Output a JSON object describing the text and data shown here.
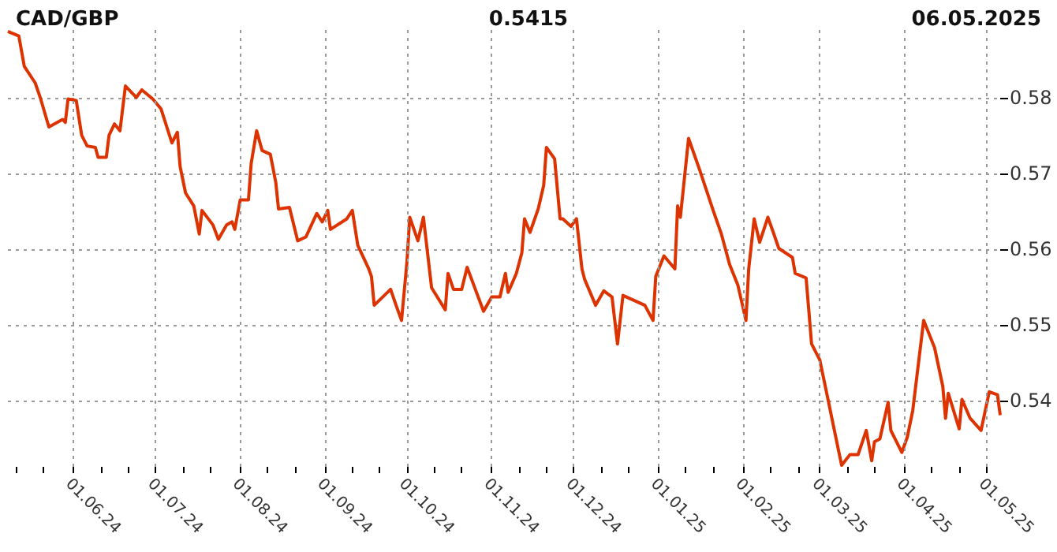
{
  "chart_data": {
    "type": "line",
    "title": "CAD/GBP",
    "annotations": [
      "0.5415",
      "06.05.2025"
    ],
    "x": [
      "2024-05-08",
      "2024-05-12",
      "2024-05-14",
      "2024-05-18",
      "2024-05-20",
      "2024-05-23",
      "2024-05-28",
      "2024-05-29",
      "2024-05-30",
      "2024-06-02",
      "2024-06-04",
      "2024-06-06",
      "2024-06-09",
      "2024-06-10",
      "2024-06-13",
      "2024-06-14",
      "2024-06-16",
      "2024-06-18",
      "2024-06-20",
      "2024-06-24",
      "2024-06-26",
      "2024-06-30",
      "2024-07-03",
      "2024-07-07",
      "2024-07-09",
      "2024-07-10",
      "2024-07-12",
      "2024-07-15",
      "2024-07-17",
      "2024-07-18",
      "2024-07-22",
      "2024-07-24",
      "2024-07-27",
      "2024-07-29",
      "2024-07-30",
      "2024-08-01",
      "2024-08-04",
      "2024-08-05",
      "2024-08-07",
      "2024-08-09",
      "2024-08-12",
      "2024-08-14",
      "2024-08-15",
      "2024-08-19",
      "2024-08-22",
      "2024-08-25",
      "2024-08-29",
      "2024-08-31",
      "2024-09-02",
      "2024-09-03",
      "2024-09-09",
      "2024-09-11",
      "2024-09-13",
      "2024-09-17",
      "2024-09-18",
      "2024-09-19",
      "2024-09-25",
      "2024-09-27",
      "2024-09-29",
      "2024-10-01",
      "2024-10-02",
      "2024-10-05",
      "2024-10-07",
      "2024-10-09",
      "2024-10-10",
      "2024-10-15",
      "2024-10-16",
      "2024-10-18",
      "2024-10-21",
      "2024-10-23",
      "2024-10-26",
      "2024-10-29",
      "2024-11-01",
      "2024-11-04",
      "2024-11-06",
      "2024-11-07",
      "2024-11-10",
      "2024-11-12",
      "2024-11-13",
      "2024-11-15",
      "2024-11-18",
      "2024-11-20",
      "2024-11-21",
      "2024-11-24",
      "2024-11-26",
      "2024-11-27",
      "2024-11-30",
      "2024-12-02",
      "2024-12-04",
      "2024-12-05",
      "2024-12-09",
      "2024-12-12",
      "2024-12-15",
      "2024-12-17",
      "2024-12-19",
      "2024-12-27",
      "2024-12-30",
      "2024-12-31",
      "2025-01-03",
      "2025-01-07",
      "2025-01-08",
      "2025-01-09",
      "2025-01-12",
      "2025-01-16",
      "2025-01-21",
      "2025-01-24",
      "2025-01-27",
      "2025-01-30",
      "2025-02-02",
      "2025-02-03",
      "2025-02-05",
      "2025-02-07",
      "2025-02-10",
      "2025-02-12",
      "2025-02-14",
      "2025-02-19",
      "2025-02-20",
      "2025-02-24",
      "2025-02-26",
      "2025-03-01",
      "2025-03-04",
      "2025-03-06",
      "2025-03-09",
      "2025-03-12",
      "2025-03-15",
      "2025-03-18",
      "2025-03-20",
      "2025-03-21",
      "2025-03-23",
      "2025-03-26",
      "2025-03-27",
      "2025-03-31",
      "2025-04-02",
      "2025-04-04",
      "2025-04-08",
      "2025-04-12",
      "2025-04-15",
      "2025-04-16",
      "2025-04-17",
      "2025-04-21",
      "2025-04-22",
      "2025-04-25",
      "2025-04-29",
      "2025-05-02",
      "2025-05-05",
      "2025-05-06"
    ],
    "series": [
      {
        "color": "#dd3300",
        "values": [
          0.5887,
          0.5881,
          0.5841,
          0.5819,
          0.5798,
          0.5761,
          0.5771,
          0.5767,
          0.5798,
          0.5796,
          0.575,
          0.5736,
          0.5734,
          0.5721,
          0.5721,
          0.575,
          0.5765,
          0.5756,
          0.5815,
          0.58,
          0.581,
          0.5798,
          0.5785,
          0.574,
          0.5754,
          0.5709,
          0.5674,
          0.5657,
          0.562,
          0.5651,
          0.5632,
          0.5613,
          0.5632,
          0.5636,
          0.5626,
          0.5665,
          0.5665,
          0.5713,
          0.5756,
          0.573,
          0.5725,
          0.5688,
          0.5653,
          0.5655,
          0.5611,
          0.5616,
          0.5647,
          0.5636,
          0.5651,
          0.5626,
          0.564,
          0.5651,
          0.5605,
          0.5574,
          0.5564,
          0.5526,
          0.5547,
          0.5526,
          0.5506,
          0.5584,
          0.5642,
          0.5611,
          0.5642,
          0.558,
          0.5549,
          0.552,
          0.5568,
          0.5547,
          0.5547,
          0.5576,
          0.5547,
          0.5518,
          0.5537,
          0.5537,
          0.5568,
          0.5543,
          0.5568,
          0.5595,
          0.564,
          0.5622,
          0.5653,
          0.5684,
          0.5734,
          0.5719,
          0.564,
          0.564,
          0.563,
          0.564,
          0.5574,
          0.556,
          0.5526,
          0.5545,
          0.5537,
          0.5475,
          0.5539,
          0.5526,
          0.5506,
          0.5564,
          0.5591,
          0.5574,
          0.5657,
          0.5642,
          0.5746,
          0.5705,
          0.5651,
          0.562,
          0.558,
          0.5553,
          0.5506,
          0.5574,
          0.564,
          0.5609,
          0.5642,
          0.5622,
          0.5601,
          0.5589,
          0.5568,
          0.5562,
          0.5475,
          0.5454,
          0.5402,
          0.5367,
          0.5315,
          0.5329,
          0.5329,
          0.5361,
          0.5321,
          0.5346,
          0.535,
          0.5398,
          0.5361,
          0.5332,
          0.5352,
          0.5387,
          0.5506,
          0.547,
          0.5419,
          0.5377,
          0.541,
          0.5363,
          0.5402,
          0.5377,
          0.5361,
          0.5412,
          0.5408,
          0.5381
        ]
      }
    ],
    "xlim": [
      "2024-05-08",
      "2025-05-06"
    ],
    "xticks": [
      {
        "value": "2024-05-11",
        "label": null
      },
      {
        "value": "2024-05-21",
        "label": null
      },
      {
        "value": "2024-06-01",
        "label": "01.06.24"
      },
      {
        "value": "2024-06-11",
        "label": null
      },
      {
        "value": "2024-06-21",
        "label": null
      },
      {
        "value": "2024-07-01",
        "label": "01.07.24"
      },
      {
        "value": "2024-07-11",
        "label": null
      },
      {
        "value": "2024-07-21",
        "label": null
      },
      {
        "value": "2024-08-01",
        "label": "01.08.24"
      },
      {
        "value": "2024-08-11",
        "label": null
      },
      {
        "value": "2024-08-21",
        "label": null
      },
      {
        "value": "2024-09-01",
        "label": "01.09.24"
      },
      {
        "value": "2024-09-11",
        "label": null
      },
      {
        "value": "2024-09-21",
        "label": null
      },
      {
        "value": "2024-10-01",
        "label": "01.10.24"
      },
      {
        "value": "2024-10-11",
        "label": null
      },
      {
        "value": "2024-10-21",
        "label": null
      },
      {
        "value": "2024-11-01",
        "label": "01.11.24"
      },
      {
        "value": "2024-11-11",
        "label": null
      },
      {
        "value": "2024-11-21",
        "label": null
      },
      {
        "value": "2024-12-01",
        "label": "01.12.24"
      },
      {
        "value": "2024-12-11",
        "label": null
      },
      {
        "value": "2024-12-21",
        "label": null
      },
      {
        "value": "2025-01-01",
        "label": "01.01.25"
      },
      {
        "value": "2025-01-11",
        "label": null
      },
      {
        "value": "2025-01-21",
        "label": null
      },
      {
        "value": "2025-02-01",
        "label": "01.02.25"
      },
      {
        "value": "2025-02-11",
        "label": null
      },
      {
        "value": "2025-02-21",
        "label": null
      },
      {
        "value": "2025-03-01",
        "label": "01.03.25"
      },
      {
        "value": "2025-03-11",
        "label": null
      },
      {
        "value": "2025-03-21",
        "label": null
      },
      {
        "value": "2025-04-01",
        "label": "01.04.25"
      },
      {
        "value": "2025-04-11",
        "label": null
      },
      {
        "value": "2025-04-21",
        "label": null
      },
      {
        "value": "2025-05-01",
        "label": "01.05.25"
      }
    ],
    "ylim": [
      0.5313,
      0.5891
    ],
    "yticks": [
      0.54,
      0.55,
      0.56,
      0.57,
      0.58
    ],
    "grid": true
  }
}
